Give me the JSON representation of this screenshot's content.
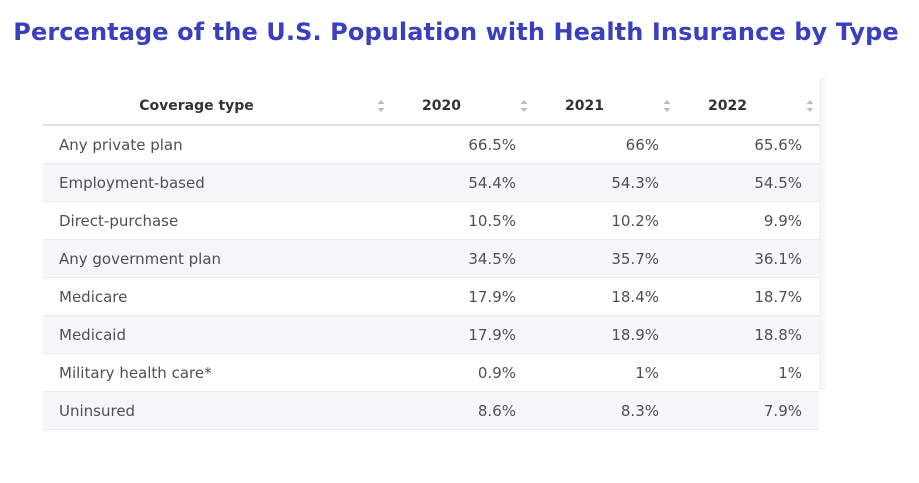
{
  "title": "Percentage of the U.S. Population with Health Insurance by Type",
  "table": {
    "headers": [
      "Coverage type",
      "2020",
      "2021",
      "2022"
    ],
    "rows": [
      [
        "Any private plan",
        "66.5%",
        "66%",
        "65.6%"
      ],
      [
        "Employment-based",
        "54.4%",
        "54.3%",
        "54.5%"
      ],
      [
        "Direct-purchase",
        "10.5%",
        "10.2%",
        "9.9%"
      ],
      [
        "Any government plan",
        "34.5%",
        "35.7%",
        "36.1%"
      ],
      [
        "Medicare",
        "17.9%",
        "18.4%",
        "18.7%"
      ],
      [
        "Medicaid",
        "17.9%",
        "18.9%",
        "18.8%"
      ],
      [
        "Military health care*",
        "0.9%",
        "1%",
        "1%"
      ],
      [
        "Uninsured",
        "8.6%",
        "8.3%",
        "7.9%"
      ]
    ]
  },
  "colors": {
    "title": "#3a3fbf",
    "row_alt_bg": "#f4f6f9",
    "sort_icon": "#b8bcc4"
  }
}
